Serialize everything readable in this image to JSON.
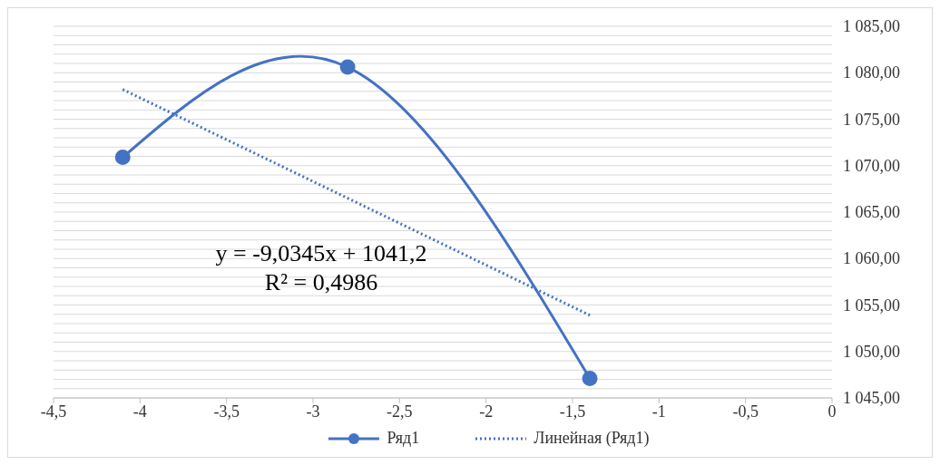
{
  "chart_data": {
    "type": "line",
    "xlim": [
      -4.5,
      0
    ],
    "xticks": [
      {
        "value": -4.5,
        "label": "-4,5"
      },
      {
        "value": -4,
        "label": "-4"
      },
      {
        "value": -3.5,
        "label": "-3,5"
      },
      {
        "value": -3,
        "label": "-3"
      },
      {
        "value": -2.5,
        "label": "-2,5"
      },
      {
        "value": -2,
        "label": "-2"
      },
      {
        "value": -1.5,
        "label": "-1,5"
      },
      {
        "value": -1,
        "label": "-1"
      },
      {
        "value": -0.5,
        "label": "-0,5"
      },
      {
        "value": 0,
        "label": "0"
      }
    ],
    "ylim": [
      1045,
      1085
    ],
    "yticks": [
      {
        "value": 1045,
        "label": "1 045,00"
      },
      {
        "value": 1046,
        "label": null
      },
      {
        "value": 1047,
        "label": null
      },
      {
        "value": 1048,
        "label": null
      },
      {
        "value": 1049,
        "label": null
      },
      {
        "value": 1050,
        "label": "1 050,00"
      },
      {
        "value": 1051,
        "label": null
      },
      {
        "value": 1052,
        "label": null
      },
      {
        "value": 1053,
        "label": null
      },
      {
        "value": 1054,
        "label": null
      },
      {
        "value": 1055,
        "label": "1 055,00"
      },
      {
        "value": 1056,
        "label": null
      },
      {
        "value": 1057,
        "label": null
      },
      {
        "value": 1058,
        "label": null
      },
      {
        "value": 1059,
        "label": null
      },
      {
        "value": 1060,
        "label": "1 060,00"
      },
      {
        "value": 1061,
        "label": null
      },
      {
        "value": 1062,
        "label": null
      },
      {
        "value": 1063,
        "label": null
      },
      {
        "value": 1064,
        "label": null
      },
      {
        "value": 1065,
        "label": "1 065,00"
      },
      {
        "value": 1066,
        "label": null
      },
      {
        "value": 1067,
        "label": null
      },
      {
        "value": 1068,
        "label": null
      },
      {
        "value": 1069,
        "label": null
      },
      {
        "value": 1070,
        "label": "1 070,00"
      },
      {
        "value": 1071,
        "label": null
      },
      {
        "value": 1072,
        "label": null
      },
      {
        "value": 1073,
        "label": null
      },
      {
        "value": 1074,
        "label": null
      },
      {
        "value": 1075,
        "label": "1 075,00"
      },
      {
        "value": 1076,
        "label": null
      },
      {
        "value": 1077,
        "label": null
      },
      {
        "value": 1078,
        "label": null
      },
      {
        "value": 1079,
        "label": null
      },
      {
        "value": 1080,
        "label": "1 080,00"
      },
      {
        "value": 1081,
        "label": null
      },
      {
        "value": 1082,
        "label": null
      },
      {
        "value": 1083,
        "label": null
      },
      {
        "value": 1084,
        "label": null
      },
      {
        "value": 1085,
        "label": "1 085,00"
      }
    ],
    "grid": "y",
    "legend": "bottom",
    "annotations": [
      "y = -9,0345x + 1041,2",
      "R² = 0,4986"
    ],
    "series": [
      {
        "name": "Ряд1",
        "color": "#4472c4",
        "x": [
          -4.1,
          -2.8,
          -1.4
        ],
        "values": [
          1070.9,
          1080.6,
          1047.1
        ],
        "marker": "circle",
        "line_style": "solid"
      },
      {
        "name": "Линейная (Ряд1)",
        "color": "#4472c4",
        "type": "line",
        "x": [
          -4.1,
          -1.4
        ],
        "values": [
          1078.2,
          1053.9
        ],
        "marker": "none",
        "line_style": "dotted"
      }
    ]
  }
}
